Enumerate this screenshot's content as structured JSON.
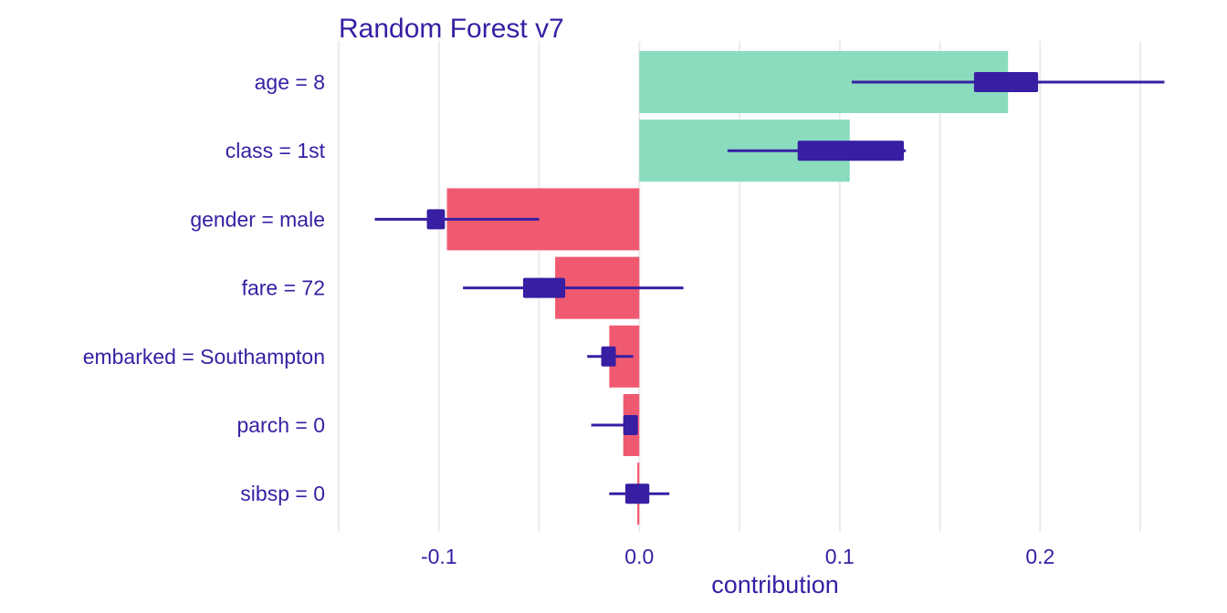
{
  "chart_data": {
    "type": "bar",
    "subtype": "break-down-with-uncertainty",
    "title": "Random Forest v7",
    "xlabel": "contribution",
    "ylabel": "",
    "xlim": [
      -0.15,
      0.265
    ],
    "x_ticks": [
      -0.1,
      0.0,
      0.1,
      0.2
    ],
    "x_tick_labels": [
      "-0.1",
      "0.0",
      "0.1",
      "0.2"
    ],
    "x_minor_gridlines": [
      -0.15,
      -0.05,
      0.05,
      0.15,
      0.25
    ],
    "grid": true,
    "legend": "none",
    "colors": {
      "positive": "#8bdcbe",
      "negative": "#f05a71",
      "interval": "#371ea3",
      "text": "#371ea3",
      "grid": "#ebebeb"
    },
    "categories": [
      "age = 8",
      "class = 1st",
      "gender = male",
      "fare = 72",
      "embarked = Southampton",
      "parch = 0",
      "sibsp = 0"
    ],
    "values": [
      0.184,
      0.105,
      -0.096,
      -0.042,
      -0.015,
      -0.008,
      -0.001
    ],
    "intervals": [
      {
        "min": 0.106,
        "q1": 0.167,
        "q3": 0.199,
        "max": 0.262
      },
      {
        "min": 0.044,
        "q1": 0.079,
        "q3": 0.132,
        "max": 0.133
      },
      {
        "min": -0.132,
        "q1": -0.106,
        "q3": -0.097,
        "max": -0.05
      },
      {
        "min": -0.088,
        "q1": -0.058,
        "q3": -0.037,
        "max": 0.022
      },
      {
        "min": -0.026,
        "q1": -0.019,
        "q3": -0.012,
        "max": -0.003
      },
      {
        "min": -0.024,
        "q1": -0.008,
        "q3": -0.001,
        "max": -0.001
      },
      {
        "min": -0.015,
        "q1": -0.007,
        "q3": 0.005,
        "max": 0.015
      }
    ]
  }
}
